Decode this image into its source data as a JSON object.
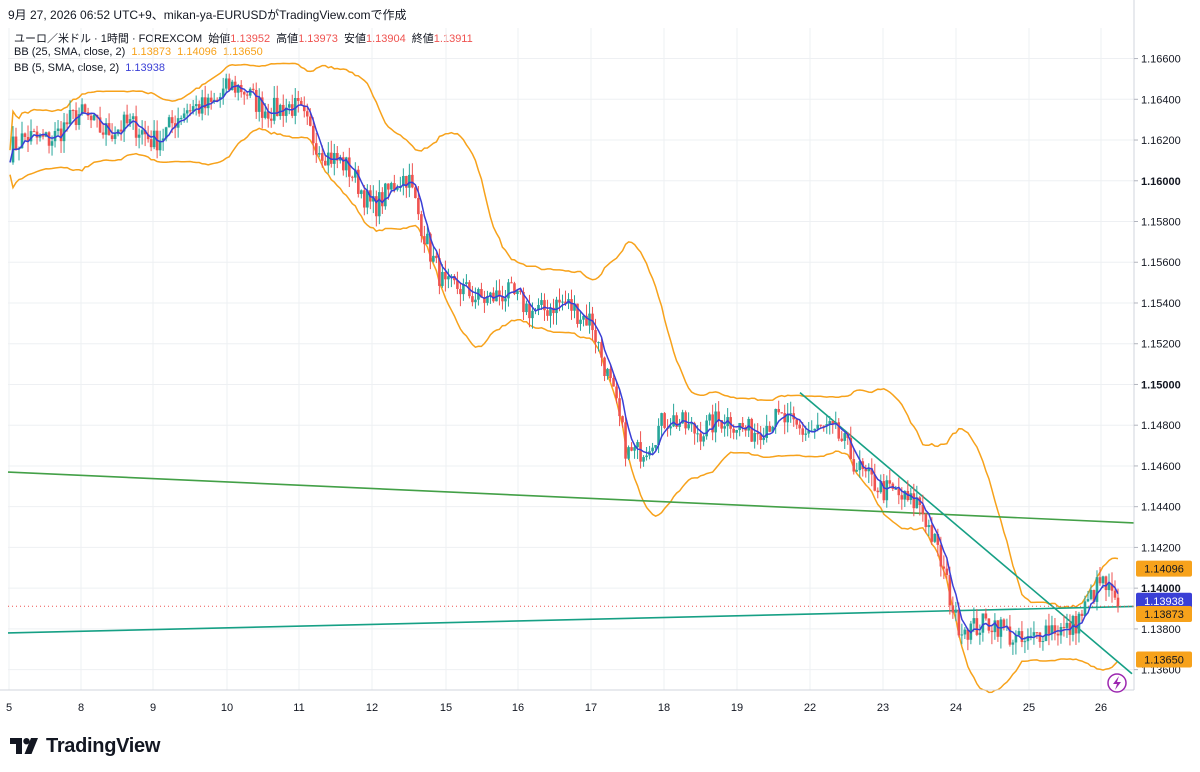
{
  "header": {
    "title": "9月 27, 2026 06:52 UTC+9、mikan-ya-EURUSDがTradingView.comで作成"
  },
  "legend": {
    "symbol_line": {
      "label": "ユーロ／米ドル · 1時間 · FOREXCOM",
      "open_label": "始値",
      "open_value": "1.13952",
      "high_label": "高値",
      "high_value": "1.13973",
      "low_label": "安値",
      "low_value": "1.13904",
      "close_label": "終値",
      "close_value": "1.13911"
    },
    "bb25": {
      "label": "BB (25, SMA, close, 2)",
      "basis": "1.13873",
      "upper": "1.14096",
      "lower": "1.13650"
    },
    "bb5": {
      "label": "BB (5, SMA, close, 2)",
      "basis": "1.13938"
    }
  },
  "colors": {
    "up": "#26a69a",
    "down": "#ef5350",
    "bb25": "#f7a21b",
    "bb5": "#3a3fd6",
    "trend_green": "#43a047",
    "trend_teal": "#16a085",
    "grid": "#eef0f3",
    "axis_text": "#131722"
  },
  "brand": {
    "name": "TradingView",
    "logo_icon": "tradingview-logo-icon"
  },
  "chart_data": {
    "type": "candlestick",
    "y_axis": {
      "range": [
        1.135,
        1.1675
      ],
      "ticks": [
        "1.16600",
        "1.16400",
        "1.16200",
        "1.16000",
        "1.15800",
        "1.15600",
        "1.15400",
        "1.15200",
        "1.15000",
        "1.14800",
        "1.14600",
        "1.14400",
        "1.14200",
        "1.14000",
        "1.13800",
        "1.13600"
      ],
      "bold_ticks": [
        "1.16000",
        "1.15000",
        "1.14000"
      ]
    },
    "x_axis": {
      "ticks": [
        "5",
        "8",
        "9",
        "10",
        "11",
        "12",
        "15",
        "16",
        "17",
        "18",
        "19",
        "22",
        "23",
        "24",
        "25",
        "26"
      ]
    },
    "price_labels": [
      {
        "value": "1.14096",
        "series": "bb25-upper",
        "color": "#f7a21b"
      },
      {
        "value": "1.13938",
        "series": "bb5-basis",
        "color": "#3a3fd6"
      },
      {
        "value": "1.13873",
        "series": "bb25-basis",
        "color": "#f7a21b"
      },
      {
        "value": "1.13650",
        "series": "bb25-lower",
        "color": "#f7a21b"
      }
    ],
    "last_close": 1.13911,
    "anchors": [
      {
        "x": "5",
        "price": 1.1615
      },
      {
        "x": "8",
        "price": 1.163
      },
      {
        "x": "9",
        "price": 1.1622
      },
      {
        "x": "10",
        "price": 1.1645
      },
      {
        "x": "11",
        "price": 1.1632
      },
      {
        "x": "11",
        "price": 1.161
      },
      {
        "x": "12",
        "price": 1.159
      },
      {
        "x": "12",
        "price": 1.16
      },
      {
        "x": "15",
        "price": 1.1545
      },
      {
        "x": "15",
        "price": 1.1545
      },
      {
        "x": "16",
        "price": 1.154
      },
      {
        "x": "17",
        "price": 1.1535
      },
      {
        "x": "17",
        "price": 1.1465
      },
      {
        "x": "18",
        "price": 1.148
      },
      {
        "x": "19",
        "price": 1.148
      },
      {
        "x": "22",
        "price": 1.148
      },
      {
        "x": "22",
        "price": 1.147
      },
      {
        "x": "23",
        "price": 1.1445
      },
      {
        "x": "23",
        "price": 1.1445
      },
      {
        "x": "24",
        "price": 1.1385
      },
      {
        "x": "25",
        "price": 1.1375
      },
      {
        "x": "25",
        "price": 1.138
      },
      {
        "x": "26",
        "price": 1.14
      },
      {
        "x": "26",
        "price": 1.1391
      }
    ],
    "trendlines": [
      {
        "name": "green-descending",
        "from": {
          "x": "5",
          "price": 1.1457
        },
        "to": {
          "x": "26",
          "price": 1.1432
        }
      },
      {
        "name": "teal-rising",
        "from": {
          "x": "5",
          "price": 1.1378
        },
        "to": {
          "x": "26",
          "price": 1.1391
        }
      },
      {
        "name": "teal-descending",
        "from": {
          "x": "22",
          "price": 1.1496
        },
        "to": {
          "x": "26",
          "price": 1.1358
        }
      }
    ]
  }
}
